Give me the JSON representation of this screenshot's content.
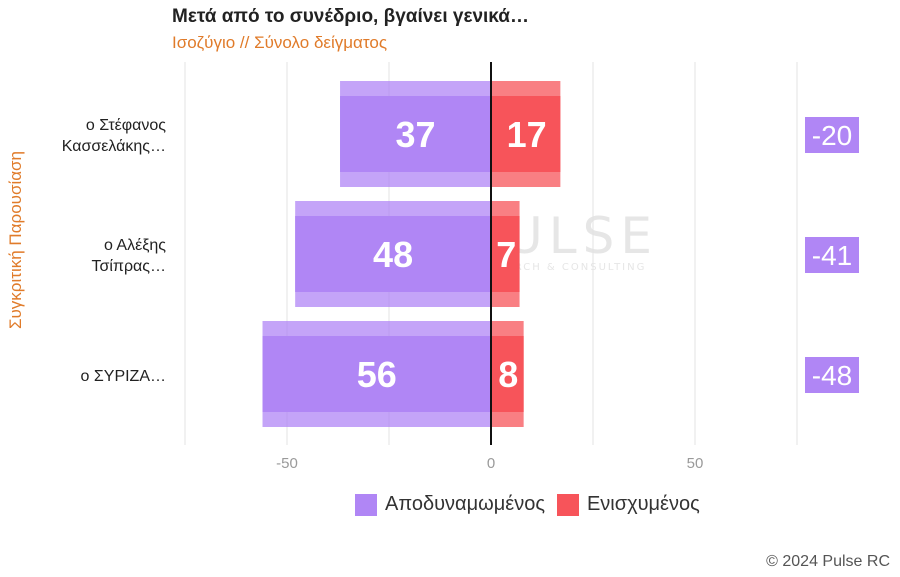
{
  "title": "Μετά από το συνέδριο, βγαίνει γενικά…",
  "subtitle": "Ισοζύγιο // Σύνολο δείγματος",
  "copyright": "© 2024 Pulse RC",
  "watermark": {
    "name": "PULSE",
    "tagline": "RESEARCH & CONSULTING"
  },
  "chart_data": {
    "type": "bar",
    "orientation": "horizontal-diverging",
    "ylabel": "Συγκριτική Παρουσίαση",
    "xlabel": "",
    "xlim": [
      -75,
      75
    ],
    "xticks": [
      -50,
      0,
      50
    ],
    "grid": true,
    "legend_position": "bottom",
    "categories": [
      "ο Στέφανος Κασσελάκης…",
      "ο Αλέξης Τσίπρας…",
      "ο ΣΥΡΙΖΑ…"
    ],
    "category_lines": [
      [
        "ο Στέφανος",
        "Κασσελάκης…"
      ],
      [
        "ο Αλέξης",
        "Τσίπρας…"
      ],
      [
        "ο ΣΥΡΙΖΑ…"
      ]
    ],
    "series": [
      {
        "name": "Αποδυναμωμένος",
        "color": "#b086f5",
        "values": [
          37,
          48,
          56
        ],
        "direction": "negative"
      },
      {
        "name": "Ενισχυμένος",
        "color": "#f7545a",
        "values": [
          17,
          7,
          8
        ],
        "direction": "positive"
      }
    ],
    "balance": {
      "color": "#b086f5",
      "values": [
        -20,
        -41,
        -48
      ]
    }
  }
}
